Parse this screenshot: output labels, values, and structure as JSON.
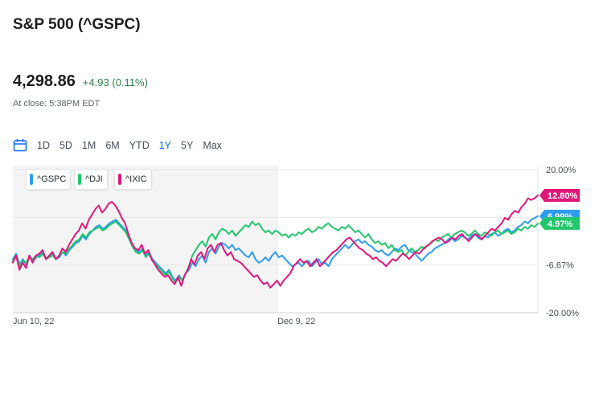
{
  "header": {
    "title": "S&P 500 (^GSPC)"
  },
  "quote": {
    "price": "4,298.86",
    "change": "+4.93 (0.11%)",
    "close_time": "At close: 5:38PM EDT"
  },
  "ranges": [
    {
      "label": "1D",
      "active": false
    },
    {
      "label": "5D",
      "active": false
    },
    {
      "label": "1M",
      "active": false
    },
    {
      "label": "6M",
      "active": false
    },
    {
      "label": "YTD",
      "active": false
    },
    {
      "label": "1Y",
      "active": true
    },
    {
      "label": "5Y",
      "active": false
    },
    {
      "label": "Max",
      "active": false
    }
  ],
  "icons": {
    "calendar": "calendar-icon"
  },
  "colors": {
    "gspc": "#2d9cf0",
    "dji": "#22c76c",
    "ixic": "#e0177a",
    "active_range": "#0f69ff",
    "price_up": "#2e7d46"
  },
  "chart_data": {
    "type": "line",
    "x_labels": [
      "Jun 10, 22",
      "Dec 9, 22"
    ],
    "y_ticks": [
      "20.00%",
      "-6.67%",
      "-20.00%"
    ],
    "ylim": [
      -20,
      20
    ],
    "y_unit": "%",
    "grid": true,
    "legend": "top-left",
    "series": [
      {
        "name": "^GSPC",
        "color": "#2d9cf0",
        "end_label": "6.99%",
        "values": [
          -5.0,
          -3.5,
          -6.5,
          -5.0,
          -6.5,
          -4.0,
          -5.5,
          -4.5,
          -4.0,
          -3.0,
          -5.0,
          -4.0,
          -3.5,
          -5.0,
          -4.5,
          -3.0,
          -4.0,
          -2.5,
          -1.5,
          -0.5,
          0.0,
          1.5,
          0.5,
          2.0,
          3.0,
          4.0,
          4.5,
          3.5,
          4.0,
          5.0,
          5.5,
          6.0,
          5.0,
          4.0,
          3.0,
          1.0,
          -1.0,
          -2.5,
          -3.0,
          -2.0,
          -4.0,
          -3.0,
          -5.0,
          -6.0,
          -7.0,
          -8.0,
          -9.0,
          -8.0,
          -10.0,
          -11.0,
          -9.5,
          -11.0,
          -9.0,
          -8.0,
          -6.0,
          -7.0,
          -5.0,
          -4.0,
          -6.0,
          -3.0,
          -2.0,
          -3.5,
          -1.5,
          -0.5,
          -1.0,
          -2.0,
          -1.0,
          -2.5,
          -2.0,
          -3.0,
          -4.0,
          -4.5,
          -3.0,
          -5.0,
          -6.0,
          -5.5,
          -4.5,
          -5.5,
          -4.0,
          -3.0,
          -4.5,
          -4.0,
          -5.0,
          -6.0,
          -7.0,
          -6.5,
          -6.0,
          -7.0,
          -6.0,
          -5.5,
          -7.0,
          -6.0,
          -5.0,
          -6.5,
          -6.0,
          -7.0,
          -5.0,
          -4.0,
          -3.0,
          -2.0,
          -1.0,
          -2.0,
          -1.0,
          0.0,
          0.5,
          -0.5,
          0.0,
          -1.0,
          -1.5,
          -2.5,
          -3.0,
          -2.5,
          -3.5,
          -4.0,
          -3.0,
          -2.0,
          -2.5,
          -1.5,
          -1.0,
          -2.5,
          -3.0,
          -3.5,
          -4.5,
          -5.5,
          -4.5,
          -3.5,
          -3.0,
          -2.0,
          -1.5,
          -1.0,
          -0.5,
          0.5,
          1.0,
          0.0,
          0.5,
          1.5,
          1.0,
          0.5,
          1.5,
          2.0,
          1.0,
          0.5,
          1.5,
          1.0,
          2.0,
          2.5,
          1.5,
          2.0,
          3.0,
          3.5,
          2.5,
          3.0,
          4.0,
          4.5,
          5.5,
          5.0,
          6.0,
          6.5,
          6.99
        ]
      },
      {
        "name": "^DJI",
        "color": "#22c76c",
        "end_label": "4.97%",
        "values": [
          -5.5,
          -4.0,
          -7.0,
          -5.5,
          -6.0,
          -4.5,
          -5.0,
          -4.0,
          -4.5,
          -3.5,
          -5.0,
          -4.5,
          -4.0,
          -5.0,
          -4.0,
          -3.0,
          -3.5,
          -2.0,
          -1.0,
          0.0,
          0.5,
          2.0,
          1.0,
          2.5,
          3.0,
          3.5,
          4.0,
          3.0,
          3.5,
          4.5,
          5.0,
          5.5,
          4.5,
          3.5,
          2.5,
          0.5,
          -1.5,
          -3.0,
          -3.5,
          -2.5,
          -4.5,
          -3.5,
          -5.5,
          -6.5,
          -7.5,
          -8.5,
          -9.5,
          -8.5,
          -10.5,
          -11.5,
          -10.0,
          -11.0,
          -9.0,
          -7.0,
          -4.0,
          -2.5,
          -1.0,
          0.0,
          -1.5,
          1.0,
          2.0,
          0.5,
          2.5,
          3.5,
          3.0,
          2.0,
          3.0,
          1.5,
          2.5,
          3.5,
          4.5,
          4.0,
          5.5,
          4.5,
          5.0,
          3.5,
          2.5,
          3.0,
          2.0,
          3.0,
          2.5,
          1.5,
          2.0,
          1.0,
          2.0,
          1.5,
          2.5,
          2.0,
          3.0,
          3.5,
          2.5,
          3.0,
          4.0,
          3.5,
          4.5,
          5.0,
          4.0,
          3.5,
          3.0,
          4.0,
          3.5,
          4.5,
          3.5,
          2.5,
          3.0,
          2.0,
          1.0,
          2.0,
          0.5,
          -0.5,
          0.0,
          -1.0,
          -0.5,
          -2.0,
          -1.0,
          -2.5,
          -3.0,
          -2.5,
          -4.0,
          -3.0,
          -2.0,
          -3.0,
          -2.5,
          -1.5,
          -2.0,
          -1.0,
          -0.5,
          0.5,
          0.0,
          1.0,
          1.5,
          2.0,
          1.0,
          2.0,
          2.5,
          3.0,
          2.5,
          1.5,
          2.0,
          3.0,
          2.0,
          1.5,
          2.5,
          2.0,
          1.5,
          2.5,
          3.0,
          2.0,
          2.5,
          3.0,
          2.0,
          2.5,
          3.5,
          3.0,
          4.0,
          3.5,
          4.5,
          4.0,
          4.97
        ]
      },
      {
        "name": "^IXIC",
        "color": "#e0177a",
        "end_label": "12.80%",
        "values": [
          -6.0,
          -4.0,
          -8.0,
          -6.0,
          -7.5,
          -4.0,
          -6.0,
          -4.0,
          -3.5,
          -2.5,
          -5.0,
          -4.0,
          -3.0,
          -5.0,
          -4.0,
          -2.0,
          -3.0,
          -1.0,
          0.5,
          2.0,
          3.0,
          5.0,
          3.5,
          6.0,
          7.5,
          9.0,
          10.0,
          8.0,
          9.0,
          10.5,
          11.0,
          10.0,
          8.5,
          6.5,
          5.0,
          2.0,
          -0.5,
          -2.0,
          -2.5,
          -1.0,
          -3.5,
          -2.5,
          -5.0,
          -6.5,
          -8.0,
          -9.0,
          -10.0,
          -9.5,
          -11.0,
          -12.0,
          -10.0,
          -12.5,
          -9.5,
          -8.0,
          -5.0,
          -6.5,
          -4.0,
          -3.0,
          -5.0,
          -2.0,
          -1.0,
          -3.0,
          -1.0,
          -0.5,
          -2.5,
          -4.0,
          -3.0,
          -5.0,
          -5.5,
          -6.0,
          -7.0,
          -8.0,
          -9.0,
          -10.0,
          -9.5,
          -11.0,
          -12.0,
          -11.5,
          -13.0,
          -12.0,
          -11.0,
          -12.5,
          -11.0,
          -10.0,
          -9.0,
          -7.0,
          -6.0,
          -5.0,
          -6.0,
          -5.5,
          -7.0,
          -6.0,
          -5.0,
          -7.0,
          -6.0,
          -5.0,
          -4.0,
          -3.0,
          -2.5,
          -1.5,
          -0.5,
          0.5,
          1.0,
          0.0,
          -1.0,
          -2.0,
          -2.5,
          -3.5,
          -4.0,
          -5.0,
          -4.5,
          -5.5,
          -6.0,
          -7.0,
          -6.0,
          -5.0,
          -5.5,
          -4.5,
          -3.5,
          -4.0,
          -5.0,
          -4.0,
          -3.0,
          -3.5,
          -2.5,
          -1.5,
          -1.0,
          0.0,
          0.5,
          1.0,
          0.5,
          -0.5,
          0.0,
          1.0,
          0.5,
          1.5,
          2.0,
          1.0,
          0.0,
          1.0,
          2.0,
          1.5,
          0.5,
          1.5,
          2.5,
          3.5,
          3.0,
          4.0,
          5.0,
          6.5,
          6.0,
          7.5,
          8.5,
          8.0,
          9.5,
          10.5,
          12.0,
          11.5,
          12.0,
          12.8
        ]
      }
    ]
  }
}
